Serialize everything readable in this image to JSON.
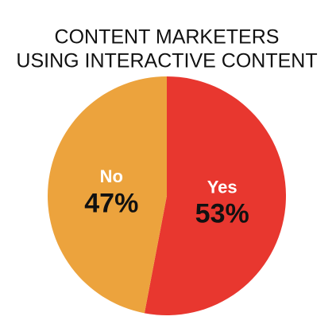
{
  "chart_data": {
    "type": "pie",
    "title": [
      "CONTENT MARKETERS",
      "USING INTERACTIVE CONTENT"
    ],
    "categories": [
      "Yes",
      "No"
    ],
    "values": [
      53,
      47
    ],
    "value_labels": [
      "53%",
      "47%"
    ],
    "colors": [
      "#e8372f",
      "#eca33d"
    ]
  }
}
